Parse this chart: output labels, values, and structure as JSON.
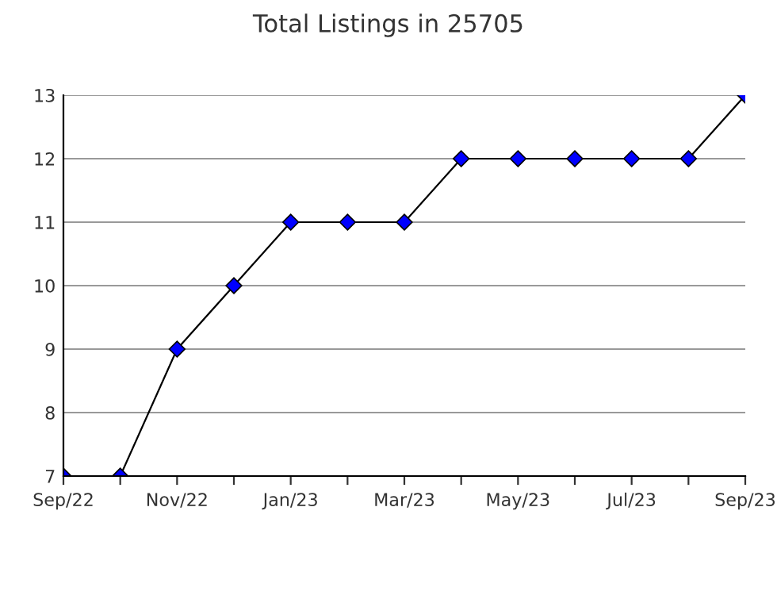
{
  "chart_data": {
    "type": "line",
    "title": "Total Listings in 25705",
    "categories": [
      "Sep/22",
      null,
      "Nov/22",
      null,
      "Jan/23",
      null,
      "Mar/23",
      null,
      "May/23",
      null,
      "Jul/23",
      null,
      "Sep/23"
    ],
    "series": [
      {
        "color": "#0000ff",
        "values": [
          7,
          7,
          9,
          10,
          11,
          11,
          11,
          12,
          12,
          12,
          12,
          12,
          13
        ]
      }
    ],
    "ylim": [
      7,
      13
    ],
    "yticks": [
      7,
      8,
      9,
      10,
      11,
      12,
      13
    ],
    "grid": "y",
    "marker": "diamond",
    "line_style": "solid",
    "legend": false
  }
}
